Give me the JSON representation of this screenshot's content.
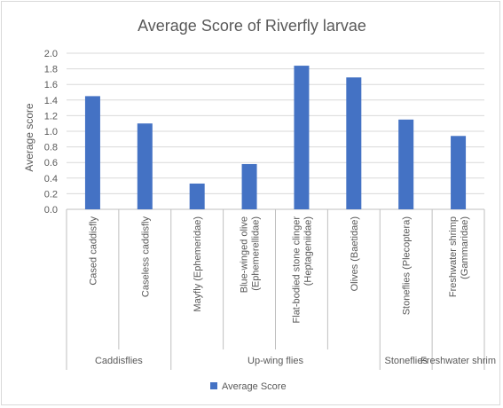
{
  "chart_data": {
    "type": "bar",
    "title": "Average Score of Riverfly larvae",
    "ylabel": "Average score",
    "xlabel": "",
    "ylim": [
      0,
      2.0
    ],
    "ytick_step": 0.2,
    "yticks": [
      "0.0",
      "0.2",
      "0.4",
      "0.6",
      "0.8",
      "1.0",
      "1.2",
      "1.4",
      "1.6",
      "1.8",
      "2.0"
    ],
    "grid": true,
    "legend_position": "bottom",
    "colors": {
      "bar": "#4472C4",
      "grid": "#d9d9d9",
      "axis": "#bfbfbf",
      "text": "#595959"
    },
    "categories": [
      {
        "lines": [
          "Cased caddisfly"
        ]
      },
      {
        "lines": [
          "Caseless caddisfly"
        ]
      },
      {
        "lines": [
          "Mayfly (Ephemeridae)"
        ]
      },
      {
        "lines": [
          "Blue-winged olive",
          "(Ephemerellidae)"
        ]
      },
      {
        "lines": [
          "Flat-bodied stone clinger",
          "(Heptageniidae)"
        ]
      },
      {
        "lines": [
          "Olives (Baetidae)"
        ]
      },
      {
        "lines": [
          "Stoneflies (Plecoptera)"
        ]
      },
      {
        "lines": [
          "Freshwater shrimp",
          "(Gammaridae)"
        ]
      }
    ],
    "groups": [
      {
        "label": "Caddisflies",
        "start": 0,
        "end": 1
      },
      {
        "label": "Up-wing flies",
        "start": 2,
        "end": 5
      },
      {
        "label": "Stoneflies",
        "start": 6,
        "end": 6
      },
      {
        "label": "Freshwater shrim",
        "start": 7,
        "end": 7
      }
    ],
    "series": [
      {
        "name": "Average Score",
        "values": [
          1.45,
          1.1,
          0.33,
          0.58,
          1.84,
          1.69,
          1.15,
          0.94
        ]
      }
    ]
  }
}
